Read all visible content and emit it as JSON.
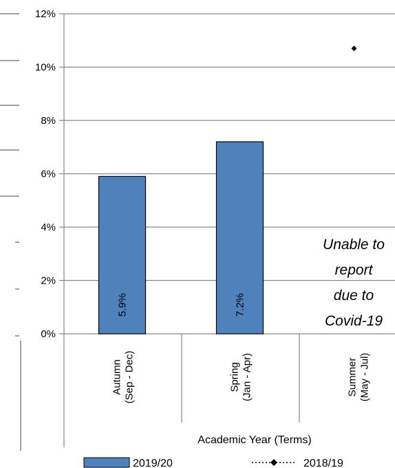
{
  "chart_data": {
    "type": "bar",
    "categories": [
      [
        "Autumn",
        "(Sep - Dec)"
      ],
      [
        "Spring",
        "(Jan - Apr)"
      ],
      [
        "Summer",
        "(May - Jul)"
      ]
    ],
    "series": [
      {
        "name": "2019/20",
        "type": "bar",
        "values": [
          5.9,
          7.2,
          null
        ],
        "labels": [
          "5.9%",
          "7.2%",
          ""
        ],
        "color": "#4F81BD"
      },
      {
        "name": "2018/19",
        "type": "line",
        "values": [
          null,
          null,
          10.7
        ],
        "color": "#000000"
      }
    ],
    "yticks": [
      "0%",
      "2%",
      "4%",
      "6%",
      "8%",
      "10%",
      "12%"
    ],
    "ylim": [
      0,
      12
    ],
    "xlabel": "Academic Year (Terms)",
    "grid": true,
    "legend_position": "bottom",
    "annotation": [
      "Unable to",
      "report",
      "due to",
      "Covid-19"
    ]
  }
}
